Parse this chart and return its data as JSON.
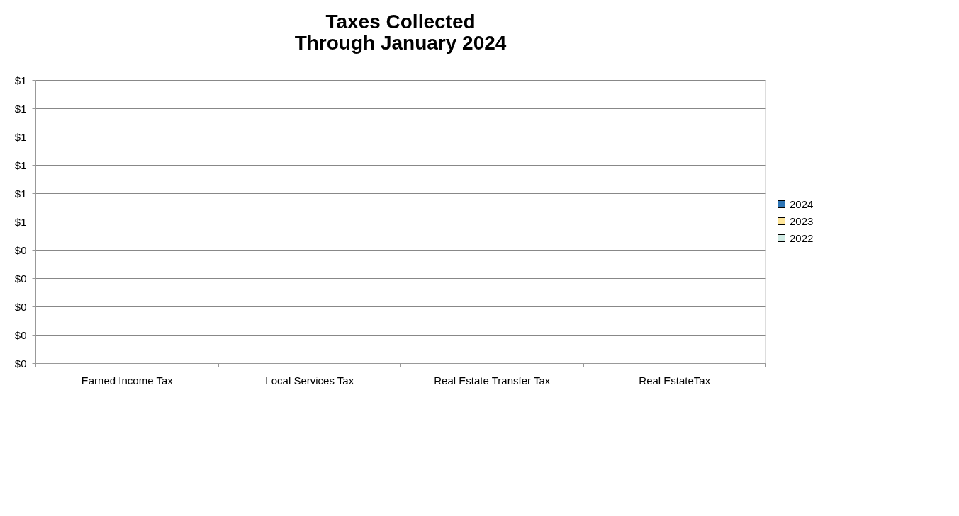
{
  "chart_data": {
    "type": "bar",
    "title": "Taxes Collected\nThrough January 2024",
    "categories": [
      "Earned Income Tax",
      "Local Services Tax",
      "Real Estate Transfer Tax",
      "Real EstateTax"
    ],
    "series": [
      {
        "name": "2024",
        "color": "#2e75b6",
        "values": [
          0,
          0,
          0,
          0
        ]
      },
      {
        "name": "2023",
        "color": "#ffe699",
        "values": [
          0,
          0,
          0,
          0
        ]
      },
      {
        "name": "2022",
        "color": "#d0ebe4",
        "values": [
          0,
          0,
          0,
          0
        ]
      }
    ],
    "ylim": [
      0,
      1
    ],
    "yticks": [
      {
        "value": 0,
        "label": "$0"
      },
      {
        "value": 0.1,
        "label": "$0"
      },
      {
        "value": 0.2,
        "label": "$0"
      },
      {
        "value": 0.3,
        "label": "$0"
      },
      {
        "value": 0.4,
        "label": "$0"
      },
      {
        "value": 0.5,
        "label": "$1"
      },
      {
        "value": 0.6,
        "label": "$1"
      },
      {
        "value": 0.7,
        "label": "$1"
      },
      {
        "value": 0.8,
        "label": "$1"
      },
      {
        "value": 0.9,
        "label": "$1"
      },
      {
        "value": 1,
        "label": "$1"
      }
    ],
    "grid": "y",
    "legend": "right"
  }
}
